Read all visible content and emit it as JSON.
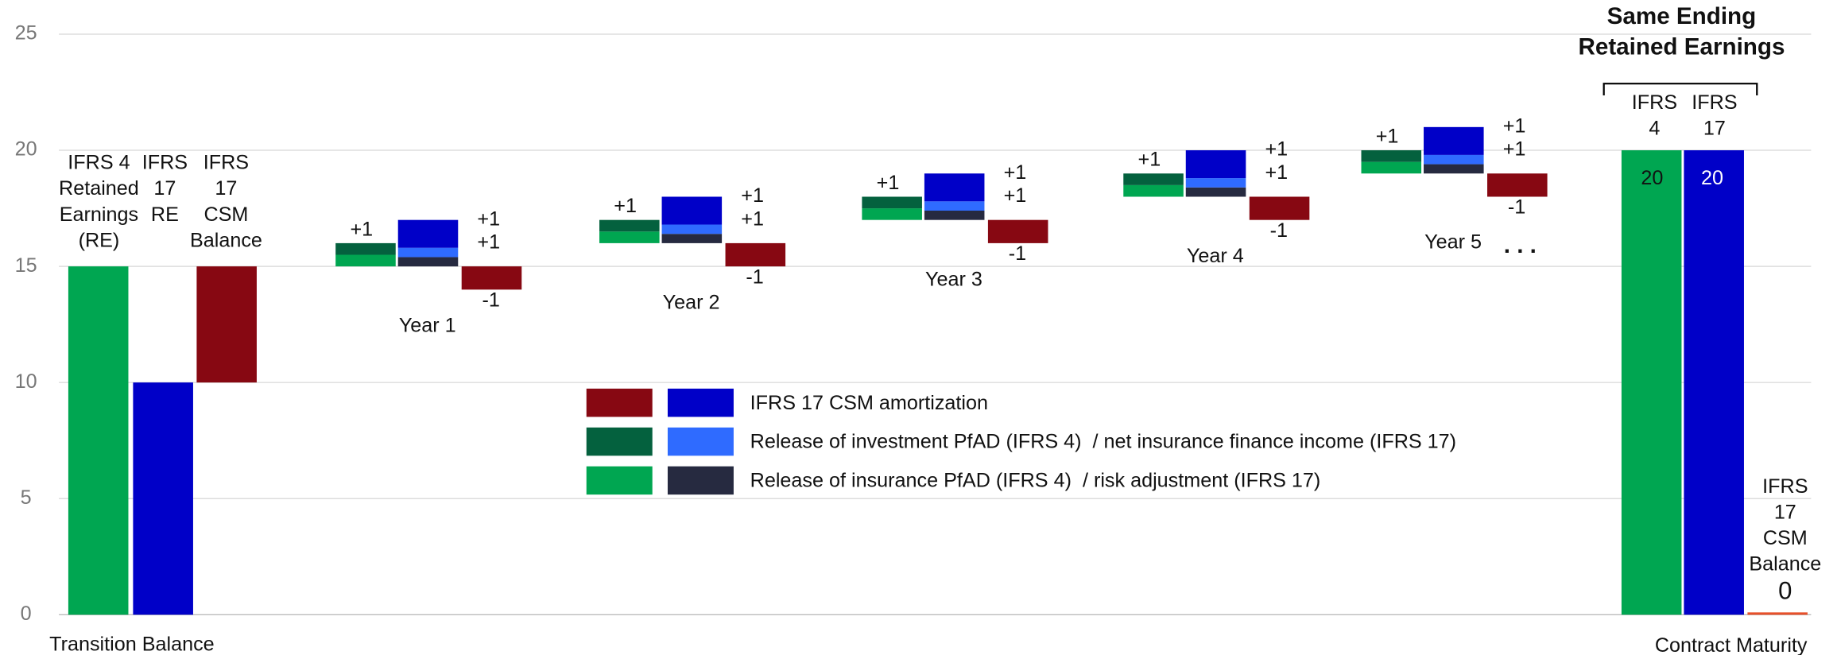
{
  "chart_data": {
    "type": "waterfall",
    "title": [
      "Same Ending",
      "Retained Earnings"
    ],
    "ylim": [
      0,
      25
    ],
    "yticks": [
      0,
      5,
      10,
      15,
      20,
      25
    ],
    "grid": true,
    "x_labels": [
      "Transition Balance",
      "Contract Maturity"
    ],
    "transition": [
      {
        "lines": [
          "IFRS 4",
          "Retained",
          "Earnings",
          "(RE)"
        ],
        "value": 15,
        "color": "#00a651"
      },
      {
        "lines": [
          "IFRS",
          "17",
          "RE"
        ],
        "value": 10,
        "color": "#0000c8"
      },
      {
        "lines": [
          "IFRS",
          "17",
          "CSM",
          "Balance"
        ],
        "value": 5,
        "color": "#870812"
      }
    ],
    "ifrs4_colors": [
      "#00a651",
      "#04613e"
    ],
    "ifrs17_colors": [
      "#262a40",
      "#2f6bff",
      "#0000c8"
    ],
    "csm_color": "#870812",
    "years": [
      {
        "label": "Year 1",
        "ifrs4": [
          0.5,
          0.5
        ],
        "ifrs17": [
          0.4,
          0.4,
          1.2
        ],
        "csm": -1,
        "annotations": [
          "+1",
          "+1",
          "+1",
          "-1"
        ]
      },
      {
        "label": "Year 2",
        "ifrs4": [
          0.5,
          0.5
        ],
        "ifrs17": [
          0.4,
          0.4,
          1.2
        ],
        "csm": -1,
        "annotations": [
          "+1",
          "+1",
          "+1",
          "-1"
        ]
      },
      {
        "label": "Year 3",
        "ifrs4": [
          0.5,
          0.5
        ],
        "ifrs17": [
          0.4,
          0.4,
          1.2
        ],
        "csm": -1,
        "annotations": [
          "+1",
          "+1",
          "+1",
          "-1"
        ]
      },
      {
        "label": "Year 4",
        "ifrs4": [
          0.5,
          0.5
        ],
        "ifrs17": [
          0.4,
          0.4,
          1.2
        ],
        "csm": -1,
        "annotations": [
          "+1",
          "+1",
          "+1",
          "-1"
        ]
      },
      {
        "label": "Year 5",
        "ifrs4": [
          0.5,
          0.5
        ],
        "ifrs17": [
          0.4,
          0.4,
          1.2
        ],
        "csm": -1,
        "annotations": [
          "+1",
          "+1",
          "+1",
          "-1"
        ]
      }
    ],
    "ellipsis": ". . .",
    "maturity": [
      {
        "lines": [
          "IFRS",
          "4"
        ],
        "value": 20,
        "color": "#00a651"
      },
      {
        "lines": [
          "IFRS",
          "17"
        ],
        "value": 20,
        "color": "#0000c8"
      },
      {
        "lines": [
          "IFRS",
          "17",
          "CSM",
          "Balance"
        ],
        "value": 0,
        "color": "#e8502a"
      }
    ],
    "legend": [
      {
        "name": "IFRS 17 CSM amortization",
        "colors": [
          "#870812",
          "#0000c8"
        ]
      },
      {
        "name": "Release of investment PfAD (IFRS 4)  / net insurance finance income (IFRS 17)",
        "colors": [
          "#04613e",
          "#2f6bff"
        ]
      },
      {
        "name": "Release of insurance PfAD (IFRS 4)  / risk adjustment (IFRS 17)",
        "colors": [
          "#00a651",
          "#262a40"
        ]
      }
    ]
  }
}
